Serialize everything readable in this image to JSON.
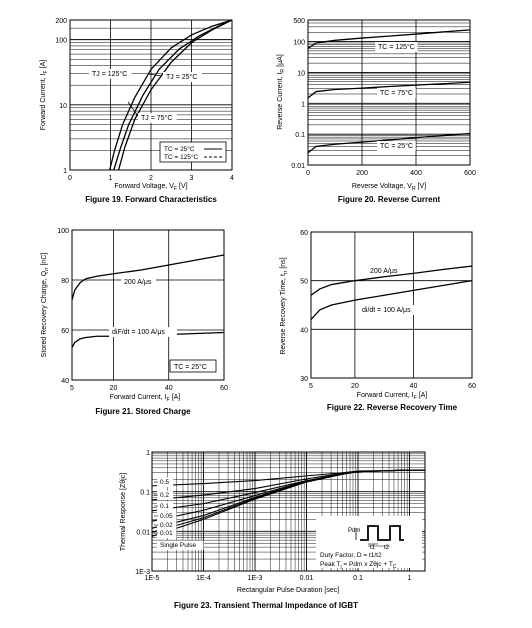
{
  "chart_data": [
    {
      "id": "fig19",
      "type": "line",
      "caption": "Figure 19. Forward Characteristics",
      "xlabel": "Forward Voltage, V",
      "xlabel_sub": "F",
      "xlabel_unit": "[V]",
      "ylabel": "Forward Current, I",
      "ylabel_sub": "F",
      "ylabel_unit": "[A]",
      "xlim": [
        0,
        4
      ],
      "ylim": [
        1,
        200
      ],
      "yscale": "log",
      "x_ticks": [
        "0",
        "1",
        "2",
        "3",
        "4"
      ],
      "y_ticks": [
        "1",
        "10",
        "100",
        "200"
      ],
      "series": [
        {
          "name": "TJ = 125°C",
          "label_pos": "left",
          "x": [
            0.98,
            1.1,
            1.3,
            1.6,
            2.0,
            2.5,
            3.0,
            3.5,
            4.0
          ],
          "y": [
            1,
            2,
            5,
            13,
            35,
            75,
            118,
            160,
            200
          ]
        },
        {
          "name": "TJ = 25°C",
          "label_pos": "right",
          "x": [
            1.2,
            1.35,
            1.6,
            2.0,
            2.5,
            3.0,
            3.5,
            4.0
          ],
          "y": [
            1,
            2.2,
            6,
            17,
            45,
            90,
            140,
            200
          ]
        },
        {
          "name": "TJ = 75°C",
          "label_pos": "below",
          "x": [
            1.08,
            1.25,
            1.45,
            1.8,
            2.2,
            2.7,
            3.2,
            3.7,
            4.0
          ],
          "y": [
            1,
            2.2,
            5,
            14,
            35,
            72,
            115,
            165,
            200
          ]
        }
      ],
      "legend": [
        "TC = 25°C",
        "TC = 125°C"
      ]
    },
    {
      "id": "fig20",
      "type": "line",
      "caption": "Figure 20. Reverse Current",
      "xlabel": "Reverse Voltage, V",
      "xlabel_sub": "R",
      "xlabel_unit": "[V]",
      "ylabel": "Reverse Current, I",
      "ylabel_sub": "R",
      "ylabel_unit": "[μA]",
      "xlim": [
        0,
        600
      ],
      "ylim": [
        0.01,
        500
      ],
      "yscale": "log",
      "x_ticks": [
        "0",
        "200",
        "400",
        "600"
      ],
      "y_ticks": [
        "0.01",
        "0.1",
        "1",
        "10",
        "100",
        "500"
      ],
      "series": [
        {
          "name": "TC = 125°C",
          "x": [
            0,
            30,
            100,
            200,
            300,
            400,
            500,
            600
          ],
          "y": [
            60,
            90,
            110,
            130,
            150,
            175,
            205,
            240
          ]
        },
        {
          "name": "TC = 75°C",
          "x": [
            0,
            30,
            100,
            200,
            300,
            400,
            500,
            600
          ],
          "y": [
            1.5,
            2.4,
            2.8,
            3.1,
            3.5,
            3.9,
            4.3,
            4.8
          ]
        },
        {
          "name": "TC = 25°C",
          "x": [
            0,
            30,
            100,
            200,
            300,
            400,
            500,
            600
          ],
          "y": [
            0.025,
            0.04,
            0.047,
            0.055,
            0.065,
            0.077,
            0.09,
            0.105
          ]
        }
      ]
    },
    {
      "id": "fig21",
      "type": "line",
      "caption": "Figure 21. Stored Charge",
      "xlabel": "Forward Current, I",
      "xlabel_sub": "F",
      "xlabel_unit": "[A]",
      "ylabel": "Stored Recovery Charge, Q",
      "ylabel_sub": "rr",
      "ylabel_unit": "[nC]",
      "xlim": [
        5,
        60
      ],
      "ylim": [
        40,
        100
      ],
      "x_ticks": [
        "5",
        "20",
        "40",
        "60"
      ],
      "y_ticks": [
        "40",
        "60",
        "80",
        "100"
      ],
      "series": [
        {
          "name": "200 A/μs",
          "x": [
            5,
            6,
            8,
            10,
            14,
            20,
            30,
            40,
            50,
            60
          ],
          "y": [
            72,
            76,
            79,
            80.5,
            81.5,
            82.5,
            84,
            86,
            88,
            90
          ]
        },
        {
          "name": "diF/dt = 100 A/μs",
          "x": [
            5,
            6,
            8,
            10,
            14,
            20,
            30,
            40,
            50,
            60
          ],
          "y": [
            53,
            55,
            56.5,
            57,
            57.5,
            57.5,
            57.8,
            58.2,
            58.6,
            59
          ]
        }
      ],
      "legend": [
        "TC = 25°C"
      ]
    },
    {
      "id": "fig22",
      "type": "line",
      "caption": "Figure 22. Reverse Recovery Time",
      "xlabel": "Forward Current, I",
      "xlabel_sub": "F",
      "xlabel_unit": "[A]",
      "ylabel": "Reverse Recovery Time, t",
      "ylabel_sub": "rr",
      "ylabel_unit": "[ns]",
      "xlim": [
        5,
        60
      ],
      "ylim": [
        30,
        60
      ],
      "x_ticks": [
        "5",
        "20",
        "40",
        "60"
      ],
      "y_ticks": [
        "30",
        "40",
        "50",
        "60"
      ],
      "series": [
        {
          "name": "200 A/μs",
          "x": [
            5,
            8,
            12,
            20,
            30,
            40,
            50,
            60
          ],
          "y": [
            47,
            48.3,
            49.2,
            50,
            50.8,
            51.5,
            52.3,
            53
          ]
        },
        {
          "name": "di/dt = 100 A/μs",
          "x": [
            5,
            8,
            12,
            20,
            30,
            40,
            50,
            60
          ],
          "y": [
            42,
            44,
            45,
            46,
            47,
            48,
            49,
            50
          ]
        }
      ]
    },
    {
      "id": "fig23",
      "type": "line",
      "caption": "Figure 23. Transient Thermal Impedance of IGBT",
      "xlabel": "Rectangular Pulse Duration [sec]",
      "ylabel": "Thermal Response [Zθjc]",
      "xscale": "log",
      "yscale": "log",
      "xlim": [
        1e-05,
        2
      ],
      "ylim": [
        0.001,
        1
      ],
      "x_ticks": [
        "1E-5",
        "1E-4",
        "1E-3",
        "0.01",
        "0.1",
        "1"
      ],
      "y_ticks": [
        "1E-3",
        "0.01",
        "0.1",
        "1"
      ],
      "series": [
        {
          "name": "0.5",
          "x": [
            1e-05,
            0.0001,
            0.001,
            0.01,
            0.05,
            0.1,
            1,
            2
          ],
          "y": [
            0.14,
            0.16,
            0.19,
            0.25,
            0.3,
            0.33,
            0.35,
            0.35
          ]
        },
        {
          "name": "0.2",
          "x": [
            1e-05,
            0.0001,
            0.001,
            0.01,
            0.05,
            0.1,
            1,
            2
          ],
          "y": [
            0.062,
            0.082,
            0.12,
            0.21,
            0.29,
            0.32,
            0.35,
            0.35
          ]
        },
        {
          "name": "0.1",
          "x": [
            1e-05,
            0.0001,
            0.001,
            0.01,
            0.05,
            0.1,
            1,
            2
          ],
          "y": [
            0.033,
            0.05,
            0.095,
            0.19,
            0.28,
            0.32,
            0.35,
            0.35
          ]
        },
        {
          "name": "0.05",
          "x": [
            1e-05,
            0.0001,
            0.001,
            0.01,
            0.05,
            0.1,
            1,
            2
          ],
          "y": [
            0.018,
            0.034,
            0.08,
            0.185,
            0.28,
            0.32,
            0.35,
            0.35
          ]
        },
        {
          "name": "0.02",
          "x": [
            1e-05,
            0.0001,
            0.001,
            0.01,
            0.05,
            0.1,
            1,
            2
          ],
          "y": [
            0.012,
            0.025,
            0.072,
            0.18,
            0.275,
            0.32,
            0.35,
            0.35
          ]
        },
        {
          "name": "0.01",
          "x": [
            1e-05,
            0.0001,
            0.001,
            0.01,
            0.05,
            0.1,
            1,
            2
          ],
          "y": [
            0.0095,
            0.022,
            0.068,
            0.178,
            0.275,
            0.32,
            0.35,
            0.35
          ]
        },
        {
          "name": "Single Pulse",
          "x": [
            1e-05,
            0.0001,
            0.001,
            0.01,
            0.05,
            0.1,
            1,
            2
          ],
          "y": [
            0.0075,
            0.02,
            0.065,
            0.175,
            0.275,
            0.32,
            0.35,
            0.35
          ]
        }
      ],
      "annotations": {
        "duty_factor": "Duty Factor, D = t1/t2",
        "peak": "Peak T",
        "peak_sub": "j",
        "peak_rest": " = Pdm x Zθjc + T",
        "peak_sub2": "C",
        "pdm": "Pdm",
        "t1": "t1",
        "t2": "t2"
      }
    }
  ]
}
